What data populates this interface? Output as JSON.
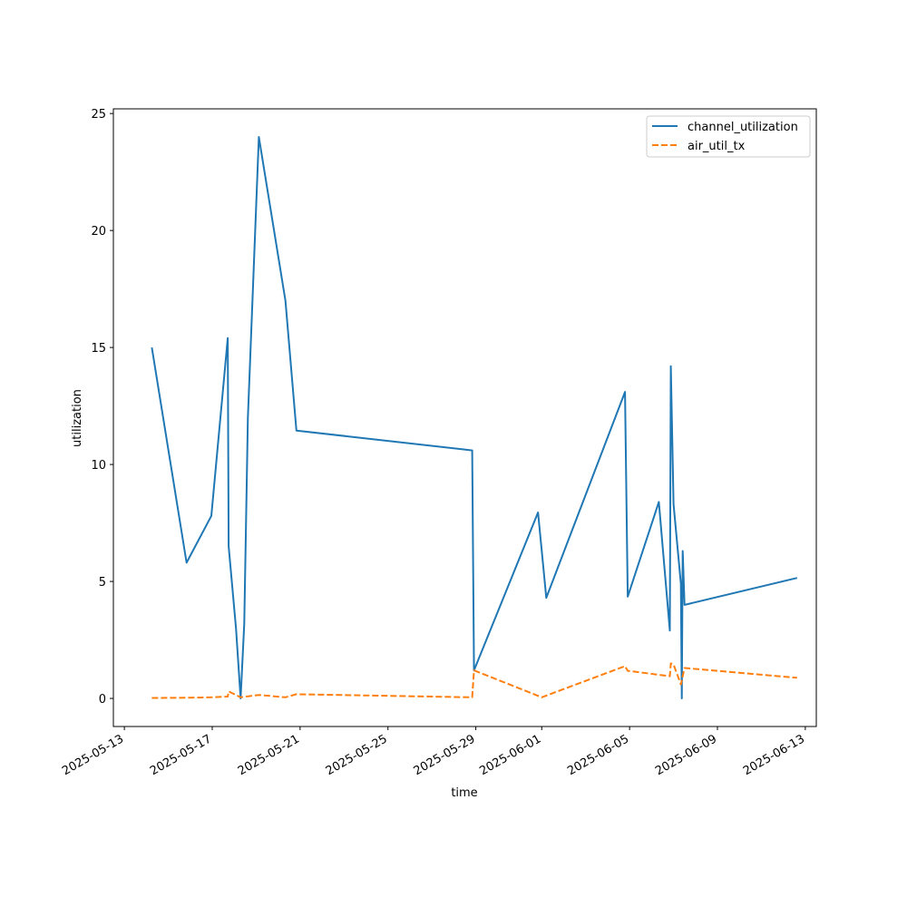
{
  "chart_data": {
    "type": "line",
    "title": "",
    "xlabel": "time",
    "ylabel": "utilization",
    "x_axis": "date",
    "xlim": [
      "2025-05-12T12:00",
      "2025-06-13T12:00"
    ],
    "ylim": [
      -1.2,
      25.2
    ],
    "x_ticks": [
      "2025-05-13",
      "2025-05-17",
      "2025-05-21",
      "2025-05-25",
      "2025-05-29",
      "2025-06-01",
      "2025-06-05",
      "2025-06-09",
      "2025-06-13"
    ],
    "y_ticks": [
      0,
      5,
      10,
      15,
      20,
      25
    ],
    "grid": false,
    "legend_position": "top-right",
    "series": [
      {
        "name": "channel_utilization",
        "color": "#1f77b4",
        "style": "solid",
        "points": [
          [
            "2025-05-14T06:00",
            15.0
          ],
          [
            "2025-05-15T20:00",
            5.8
          ],
          [
            "2025-05-16T23:00",
            7.8
          ],
          [
            "2025-05-17T17:00",
            15.4
          ],
          [
            "2025-05-17T18:00",
            6.5
          ],
          [
            "2025-05-18T02:00",
            3.0
          ],
          [
            "2025-05-18T07:00",
            0.0
          ],
          [
            "2025-05-18T11:00",
            3.2
          ],
          [
            "2025-05-18T15:00",
            12.0
          ],
          [
            "2025-05-19T03:00",
            24.0
          ],
          [
            "2025-05-20T08:00",
            17.0
          ],
          [
            "2025-05-20T20:00",
            11.45
          ],
          [
            "2025-05-28T20:00",
            10.6
          ],
          [
            "2025-05-28T22:00",
            1.2
          ],
          [
            "2025-05-31T20:00",
            7.95
          ],
          [
            "2025-06-01T05:00",
            4.3
          ],
          [
            "2025-06-04T19:00",
            13.1
          ],
          [
            "2025-06-04T22:00",
            4.35
          ],
          [
            "2025-06-06T08:00",
            8.4
          ],
          [
            "2025-06-06T20:00",
            2.9
          ],
          [
            "2025-06-06T21:00",
            14.2
          ],
          [
            "2025-06-07T00:00",
            8.3
          ],
          [
            "2025-06-07T08:00",
            4.9
          ],
          [
            "2025-06-07T09:00",
            0.0
          ],
          [
            "2025-06-07T10:00",
            6.3
          ],
          [
            "2025-06-07T12:00",
            4.0
          ],
          [
            "2025-06-12T15:00",
            5.15
          ]
        ]
      },
      {
        "name": "air_util_tx",
        "color": "#ff7f0e",
        "style": "dashed",
        "points": [
          [
            "2025-05-14T06:00",
            0.02
          ],
          [
            "2025-05-15T20:00",
            0.03
          ],
          [
            "2025-05-16T23:00",
            0.05
          ],
          [
            "2025-05-17T17:00",
            0.08
          ],
          [
            "2025-05-17T18:00",
            0.3
          ],
          [
            "2025-05-18T07:00",
            0.05
          ],
          [
            "2025-05-19T03:00",
            0.15
          ],
          [
            "2025-05-20T08:00",
            0.05
          ],
          [
            "2025-05-20T20:00",
            0.18
          ],
          [
            "2025-05-28T20:00",
            0.05
          ],
          [
            "2025-05-28T22:00",
            1.2
          ],
          [
            "2025-06-01T00:00",
            0.05
          ],
          [
            "2025-06-04T19:00",
            1.38
          ],
          [
            "2025-06-04T22:00",
            1.18
          ],
          [
            "2025-06-06T20:00",
            0.95
          ],
          [
            "2025-06-06T21:00",
            1.5
          ],
          [
            "2025-06-07T00:00",
            1.45
          ],
          [
            "2025-06-07T08:00",
            0.6
          ],
          [
            "2025-06-07T12:00",
            1.3
          ],
          [
            "2025-06-12T15:00",
            0.88
          ]
        ]
      }
    ]
  }
}
